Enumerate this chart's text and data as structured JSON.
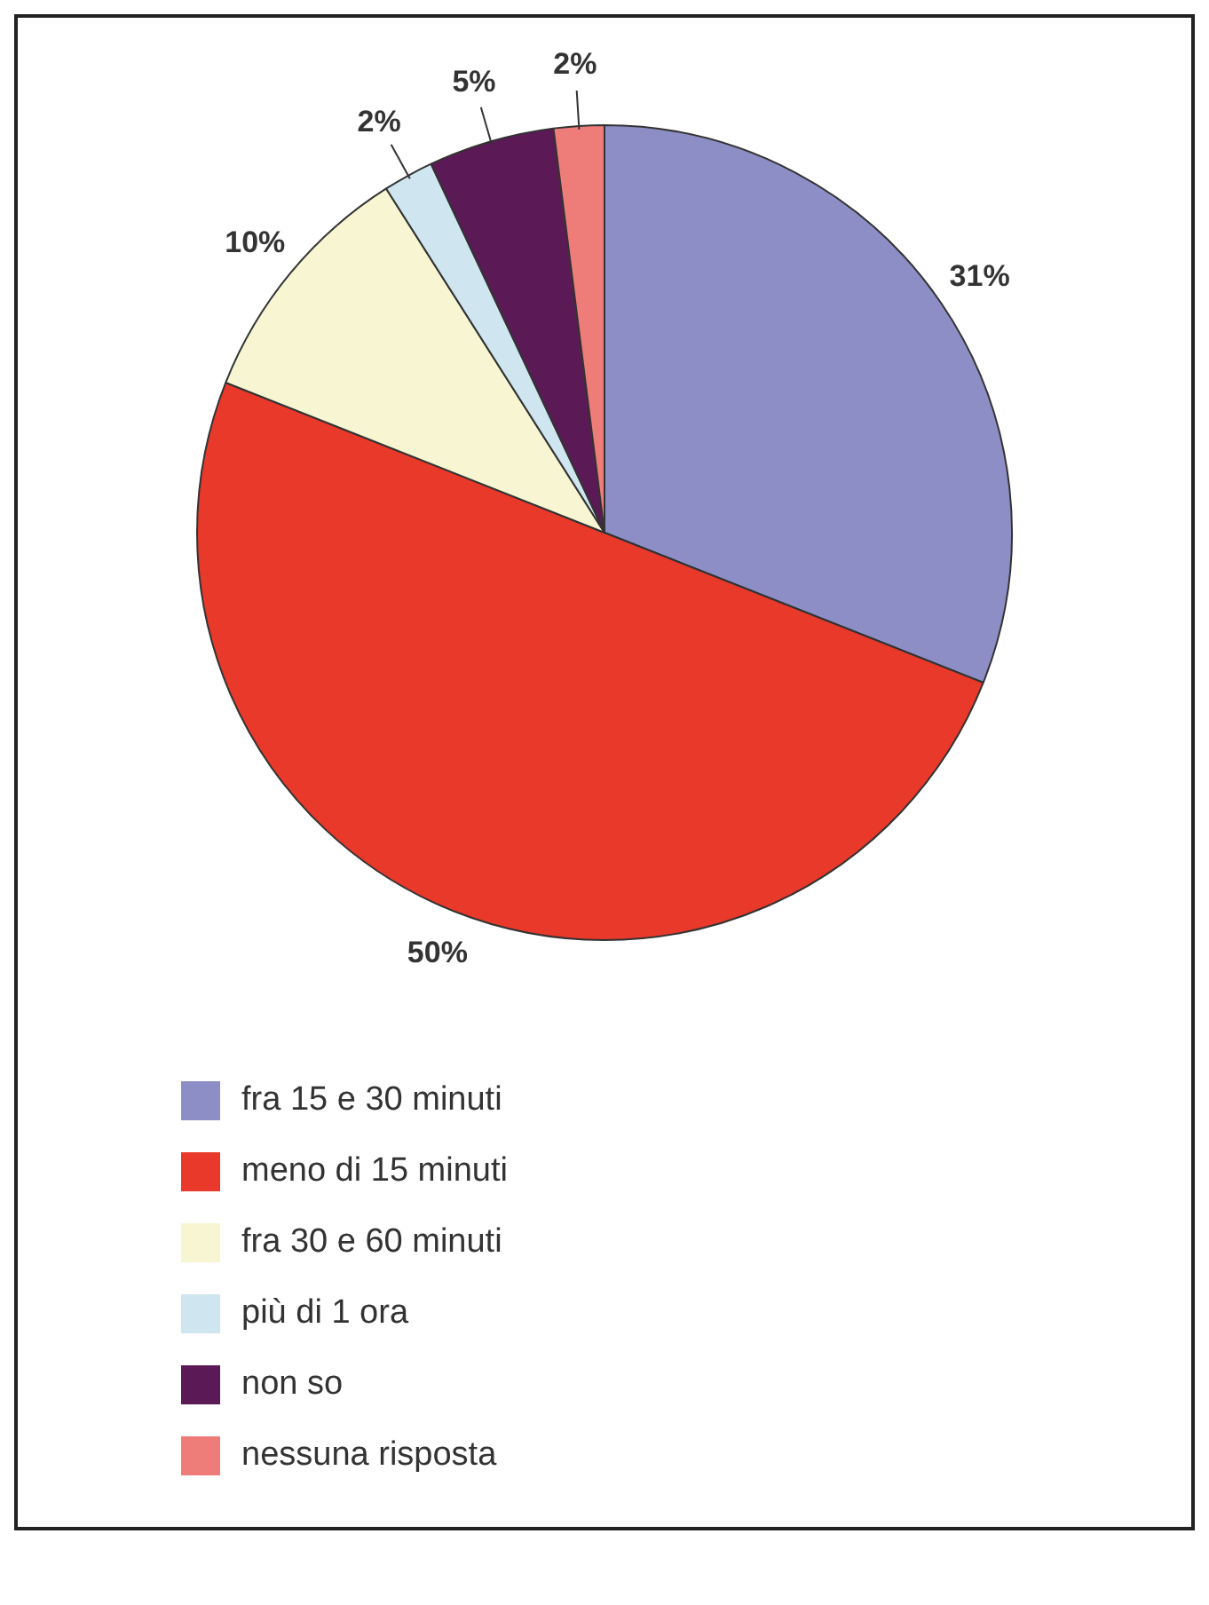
{
  "chart_data": {
    "type": "pie",
    "categories": [
      "fra 15 e 30 minuti",
      "meno di 15 minuti",
      "fra 30 e 60 minuti",
      "più di 1 ora",
      "non so",
      "nessuna risposta"
    ],
    "values": [
      31,
      50,
      10,
      2,
      5,
      2
    ],
    "colors": [
      "#8e8ec6",
      "#e8392a",
      "#f8f6d2",
      "#cfe6f0",
      "#5b1a56",
      "#ee7d7a"
    ],
    "value_labels": [
      "31%",
      "50%",
      "10%",
      "2%",
      "5%",
      "2%"
    ],
    "legend": "bottom"
  }
}
